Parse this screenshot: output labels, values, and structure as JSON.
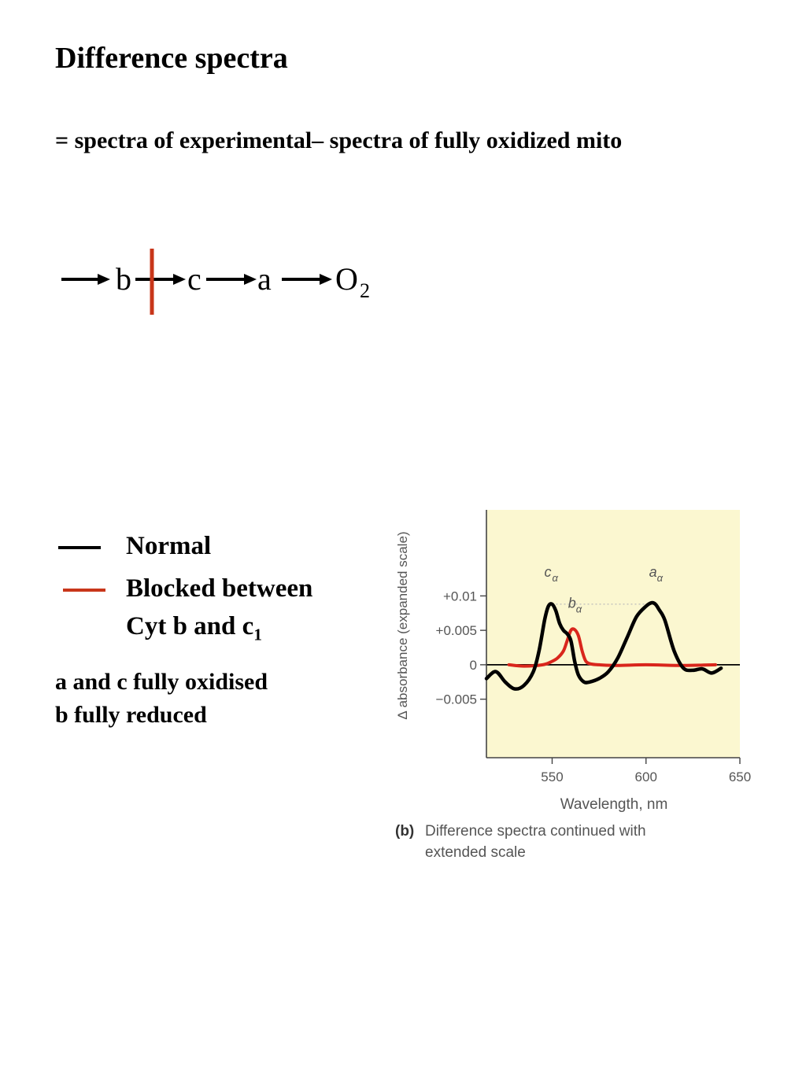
{
  "slide": {
    "title": "Difference spectra",
    "subtitle": "= spectra of experimental– spectra of fully oxidized mito"
  },
  "chain": {
    "nodes": [
      "b",
      "c",
      "a",
      "O"
    ],
    "o_subscript": "2",
    "block_color": "#c8361a"
  },
  "legend": {
    "normal": "Normal",
    "blocked_line1": "Blocked between",
    "blocked_line2": "Cyt b and c",
    "blocked_sub": "1"
  },
  "notes": {
    "line1": "a and c fully oxidised",
    "line2": "b fully reduced"
  },
  "chart_data": {
    "type": "line",
    "xlabel": "Wavelength, nm",
    "ylabel": "Δ absorbance (expanded scale)",
    "xlim": [
      515,
      650
    ],
    "ylim": [
      -0.0135,
      0.0225
    ],
    "x_ticks": [
      "550",
      "600",
      "650"
    ],
    "y_ticks": [
      "+0.01",
      "+0.005",
      "0",
      "−0.005"
    ],
    "caption_label": "(b)",
    "caption_line1": "Difference spectra continued with",
    "caption_line2": "extended scale",
    "peak_labels": [
      {
        "letter": "c",
        "sub": "α",
        "x": 550
      },
      {
        "letter": "b",
        "sub": "α",
        "x": 561
      },
      {
        "letter": "a",
        "sub": "α",
        "x": 605
      }
    ],
    "background_color": "#fbf7d0",
    "series": [
      {
        "color": "#000000",
        "x": [
          515,
          520,
          525,
          530,
          535,
          540,
          543,
          546,
          548,
          550,
          552,
          554,
          556,
          558,
          560,
          562,
          564,
          567,
          570,
          575,
          580,
          585,
          590,
          595,
          600,
          603,
          605,
          607,
          610,
          615,
          620,
          625,
          630,
          635,
          640
        ],
        "y": [
          -0.002,
          -0.001,
          -0.0025,
          -0.0035,
          -0.003,
          -0.001,
          0.002,
          0.0065,
          0.0085,
          0.0088,
          0.0078,
          0.006,
          0.005,
          0.0045,
          0.0035,
          0.0005,
          -0.0015,
          -0.0025,
          -0.0025,
          -0.002,
          -0.001,
          0.001,
          0.004,
          0.007,
          0.0085,
          0.009,
          0.0088,
          0.008,
          0.0065,
          0.002,
          -0.0005,
          -0.0008,
          -0.0006,
          -0.0012,
          -0.0005
        ]
      },
      {
        "color": "#d9261c",
        "x": [
          527,
          535,
          545,
          550,
          553,
          556,
          558,
          560,
          562,
          564,
          566,
          568,
          571,
          575,
          585,
          600,
          620,
          637
        ],
        "y": [
          0,
          -0.0002,
          0,
          0.0005,
          0.001,
          0.002,
          0.0035,
          0.005,
          0.0051,
          0.0042,
          0.002,
          0.0005,
          0.0001,
          0,
          -0.0001,
          0,
          -0.0001,
          0
        ]
      }
    ]
  }
}
